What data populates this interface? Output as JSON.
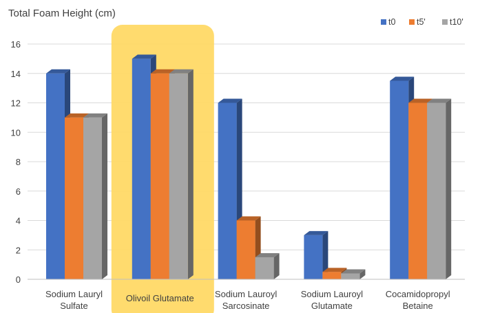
{
  "chart_data": {
    "type": "bar",
    "title": "Total Foam Height (cm)",
    "categories": [
      [
        "Sodium Lauryl",
        "Sulfate"
      ],
      [
        "Olivoil Glutamate"
      ],
      [
        "Sodium Lauroyl",
        "Sarcosinate"
      ],
      [
        "Sodium Lauroyl",
        "Glutamate"
      ],
      [
        "Cocamidopropyl",
        "Betaine"
      ]
    ],
    "series": [
      {
        "name": "t0",
        "color": "#4472C4",
        "values": [
          14,
          15,
          12,
          3,
          13.5
        ]
      },
      {
        "name": "t5'",
        "color": "#ED7D31",
        "values": [
          11,
          14,
          4,
          0.5,
          12
        ]
      },
      {
        "name": "t10'",
        "color": "#A5A5A5",
        "values": [
          11,
          14,
          1.5,
          0.4,
          12
        ]
      }
    ],
    "highlight": {
      "category_index": 1,
      "color": "#FFD966"
    },
    "ylim": [
      0,
      16
    ],
    "yticks": [
      0,
      2,
      4,
      6,
      8,
      10,
      12,
      14,
      16
    ],
    "grid": true,
    "legend": "top-right",
    "style": "3d-column"
  }
}
